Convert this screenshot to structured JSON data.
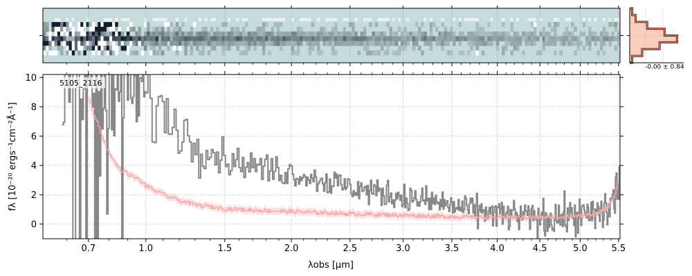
{
  "chart_data": [
    {
      "type": "heatmap",
      "panel": "2D spectrum",
      "colormap": "bone_r",
      "background_color": "#c6dcdc",
      "rows": 7,
      "columns": 200,
      "xlim": [
        0.5,
        5.52
      ]
    },
    {
      "type": "line",
      "panel": "1D spectrum",
      "id_label": "5105_2116",
      "xlabel": "λobs [μm]",
      "ylabel": "fλ [10⁻²⁰ ergs⁻¹cm⁻²Å⁻¹]",
      "xscale": "power-compressed",
      "xlim": [
        0.5,
        5.52
      ],
      "ylim": [
        -1.0,
        10.2
      ],
      "x_ticks": [
        0.7,
        1.0,
        1.5,
        2.0,
        2.5,
        3.0,
        3.5,
        4.0,
        4.5,
        5.0,
        5.5
      ],
      "x_tick_labels": [
        "0.7",
        "1.0",
        "1.5",
        "2.0",
        "2.5",
        "3.0",
        "3.5",
        "4.0",
        "4.5",
        "5.0",
        "5.5"
      ],
      "y_ticks": [
        0,
        2,
        4,
        6,
        8,
        10
      ],
      "y_tick_labels": [
        "0",
        "2",
        "4",
        "6",
        "8",
        "10"
      ],
      "grid": true,
      "series": [
        {
          "role": "data",
          "color": "#888888",
          "style": "steps",
          "x": [
            0.55,
            0.6,
            0.65,
            0.7,
            0.75,
            0.8,
            0.85,
            0.9,
            0.95,
            1.0,
            1.1,
            1.2,
            1.3,
            1.4,
            1.5,
            1.6,
            1.7,
            1.8,
            1.9,
            2.0,
            2.1,
            2.2,
            2.3,
            2.4,
            2.5,
            2.6,
            2.7,
            2.8,
            2.9,
            3.0,
            3.1,
            3.2,
            3.3,
            3.4,
            3.5,
            3.6,
            3.7,
            3.8,
            3.9,
            4.0,
            4.1,
            4.2,
            4.3,
            4.4,
            4.5,
            4.6,
            4.7,
            4.8,
            4.9,
            5.0,
            5.1,
            5.2,
            5.3,
            5.4,
            5.5
          ],
          "y": [
            5.0,
            8.0,
            9.5,
            9.0,
            8.5,
            8.0,
            9.5,
            9.0,
            9.0,
            8.5,
            7.5,
            6.5,
            5.5,
            5.0,
            4.5,
            4.2,
            4.0,
            3.8,
            3.6,
            3.5,
            3.3,
            3.1,
            2.9,
            2.7,
            2.5,
            2.4,
            2.2,
            2.1,
            2.0,
            1.8,
            1.7,
            1.6,
            1.5,
            1.4,
            1.2,
            1.1,
            1.0,
            0.9,
            0.8,
            0.7,
            0.6,
            0.55,
            0.5,
            0.45,
            0.4,
            0.4,
            0.45,
            0.5,
            0.55,
            0.55,
            0.6,
            0.7,
            0.9,
            1.2,
            2.8
          ],
          "noise": [
            8.0,
            7.0,
            6.0,
            5.0,
            5.0,
            5.0,
            4.5,
            4.0,
            3.5,
            3.0,
            2.0,
            1.6,
            1.3,
            1.1,
            1.0,
            0.9,
            0.8,
            0.8,
            0.8,
            0.8,
            0.8,
            0.8,
            0.8,
            0.8,
            0.8,
            0.8,
            0.8,
            0.8,
            0.8,
            0.8,
            0.8,
            0.8,
            0.8,
            0.8,
            0.8,
            0.8,
            0.8,
            0.8,
            0.8,
            0.9,
            0.9,
            0.9,
            0.9,
            0.9,
            1.0,
            1.0,
            1.0,
            1.0,
            1.0,
            1.0,
            1.1,
            1.2,
            1.3,
            1.5,
            1.8
          ]
        },
        {
          "role": "model",
          "color": "#f4a8a8",
          "style": "steps",
          "x": [
            0.7,
            0.75,
            0.8,
            0.85,
            0.9,
            0.95,
            1.0,
            1.1,
            1.2,
            1.3,
            1.5,
            1.7,
            2.0,
            2.5,
            3.0,
            3.5,
            4.0,
            4.5,
            4.8,
            5.0,
            5.2,
            5.35,
            5.45,
            5.5
          ],
          "y": [
            8.5,
            6.5,
            4.8,
            3.8,
            3.4,
            3.1,
            2.6,
            2.0,
            1.6,
            1.3,
            1.05,
            0.95,
            0.85,
            0.7,
            0.6,
            0.5,
            0.45,
            0.45,
            0.5,
            0.55,
            0.7,
            1.1,
            2.0,
            3.0
          ],
          "band": 0.25
        }
      ]
    },
    {
      "type": "histogram",
      "panel": "noise distribution",
      "color": "#e07050",
      "label": "-0.00 ± 0.84",
      "bins": [
        -1.6,
        -1.2,
        -0.8,
        -0.4,
        0,
        0.4,
        0.8,
        1.2,
        1.6
      ],
      "counts": [
        0.05,
        0.25,
        0.6,
        0.95,
        0.7,
        0.35,
        0.12,
        0.05
      ]
    }
  ]
}
